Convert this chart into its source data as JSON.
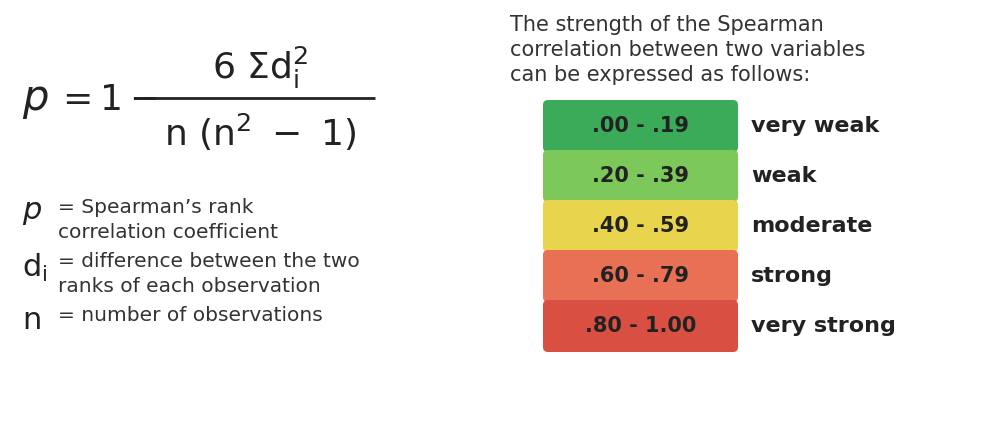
{
  "bg_color": "#ffffff",
  "right_panel": {
    "title_line1": "The strength of the Spearman",
    "title_line2": "correlation between two variables",
    "title_line3": "can be expressed as follows:",
    "rows": [
      {
        "range": ".00 - .19",
        "label": "very weak",
        "color": "#3bab5a"
      },
      {
        "range": ".20 - .39",
        "label": "weak",
        "color": "#7dc85a"
      },
      {
        "range": ".40 - .59",
        "label": "moderate",
        "color": "#e8d44d"
      },
      {
        "range": ".60 - .79",
        "label": "strong",
        "color": "#e87055"
      },
      {
        "range": ".80 - 1.00",
        "label": "very strong",
        "color": "#d94f42"
      }
    ]
  },
  "text_color": "#333333",
  "formula_color": "#222222"
}
